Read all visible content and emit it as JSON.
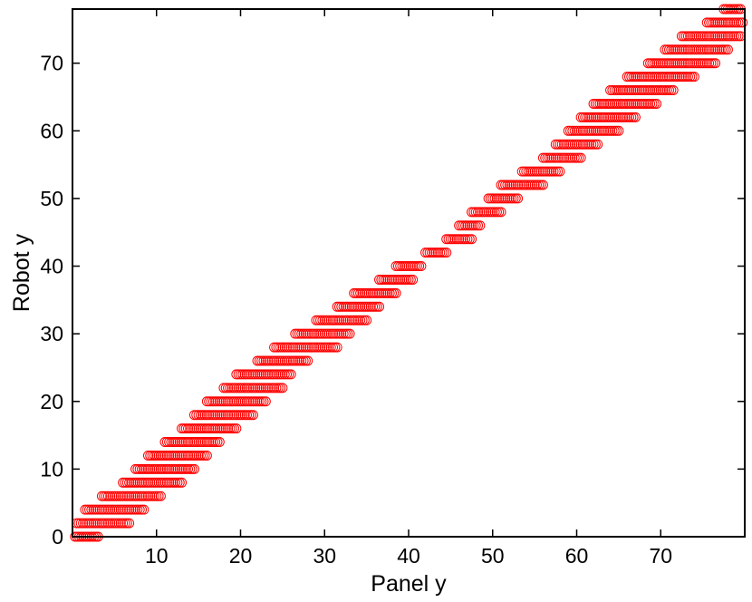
{
  "chart_data": {
    "type": "scatter",
    "title": "",
    "xlabel": "Panel y",
    "ylabel": "Robot y",
    "xlim": [
      0,
      80
    ],
    "ylim": [
      0,
      78
    ],
    "xticks": [
      "10",
      "20",
      "30",
      "40",
      "50",
      "60",
      "70"
    ],
    "yticks": [
      "0",
      "10",
      "20",
      "30",
      "40",
      "50",
      "60",
      "70"
    ],
    "grid": false,
    "legend": "none",
    "marker": "open-circle",
    "color": "#ff0000",
    "description_of_bands": "points lie on even Robot y levels; each level spans a range of Panel y",
    "series": [
      {
        "bands": [
          {
            "y": 0,
            "x": [
              0.3,
              3.2
            ]
          },
          {
            "y": 2,
            "x": [
              0.5,
              6.8
            ]
          },
          {
            "y": 4,
            "x": [
              1.5,
              8.5
            ]
          },
          {
            "y": 6,
            "x": [
              3.5,
              10.5
            ]
          },
          {
            "y": 8,
            "x": [
              6.0,
              13.0
            ]
          },
          {
            "y": 10,
            "x": [
              7.5,
              14.5
            ]
          },
          {
            "y": 12,
            "x": [
              9.0,
              16.0
            ]
          },
          {
            "y": 14,
            "x": [
              11.0,
              17.5
            ]
          },
          {
            "y": 16,
            "x": [
              13.0,
              19.5
            ]
          },
          {
            "y": 18,
            "x": [
              14.5,
              21.5
            ]
          },
          {
            "y": 20,
            "x": [
              16.0,
              23.0
            ]
          },
          {
            "y": 22,
            "x": [
              18.0,
              25.0
            ]
          },
          {
            "y": 24,
            "x": [
              19.5,
              26.0
            ]
          },
          {
            "y": 26,
            "x": [
              22.0,
              28.0
            ]
          },
          {
            "y": 28,
            "x": [
              24.0,
              31.5
            ]
          },
          {
            "y": 30,
            "x": [
              26.5,
              33.0
            ]
          },
          {
            "y": 32,
            "x": [
              29.0,
              35.0
            ]
          },
          {
            "y": 34,
            "x": [
              31.5,
              36.5
            ]
          },
          {
            "y": 36,
            "x": [
              33.5,
              38.5
            ]
          },
          {
            "y": 38,
            "x": [
              36.5,
              40.5
            ]
          },
          {
            "y": 40,
            "x": [
              38.5,
              41.5
            ]
          },
          {
            "y": 42,
            "x": [
              42.0,
              44.5
            ]
          },
          {
            "y": 44,
            "x": [
              44.5,
              47.5
            ]
          },
          {
            "y": 46,
            "x": [
              46.0,
              48.5
            ]
          },
          {
            "y": 48,
            "x": [
              47.5,
              51.0
            ]
          },
          {
            "y": 50,
            "x": [
              49.5,
              53.0
            ]
          },
          {
            "y": 52,
            "x": [
              51.0,
              56.0
            ]
          },
          {
            "y": 54,
            "x": [
              53.5,
              58.0
            ]
          },
          {
            "y": 56,
            "x": [
              56.0,
              60.5
            ]
          },
          {
            "y": 58,
            "x": [
              57.5,
              62.5
            ]
          },
          {
            "y": 60,
            "x": [
              59.0,
              65.0
            ]
          },
          {
            "y": 62,
            "x": [
              60.5,
              67.0
            ]
          },
          {
            "y": 64,
            "x": [
              62.0,
              69.5
            ]
          },
          {
            "y": 66,
            "x": [
              64.0,
              71.5
            ]
          },
          {
            "y": 68,
            "x": [
              66.0,
              74.0
            ]
          },
          {
            "y": 70,
            "x": [
              68.5,
              76.5
            ]
          },
          {
            "y": 72,
            "x": [
              70.5,
              78.0
            ]
          },
          {
            "y": 74,
            "x": [
              72.5,
              79.5
            ]
          },
          {
            "y": 76,
            "x": [
              75.5,
              79.8
            ]
          },
          {
            "y": 78,
            "x": [
              77.5,
              79.5
            ]
          }
        ],
        "point_spacing": 0.25
      }
    ]
  }
}
